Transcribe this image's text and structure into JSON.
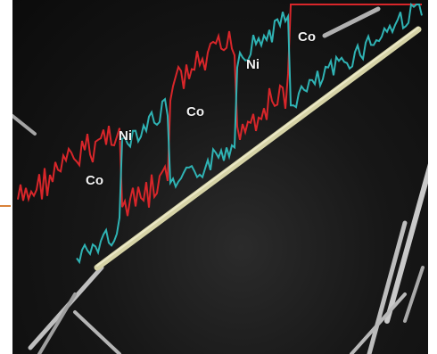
{
  "segments": [
    {
      "label": "Co"
    },
    {
      "label": "Ni"
    },
    {
      "label": "Co"
    },
    {
      "label": "Ni"
    },
    {
      "label": "Co"
    }
  ],
  "colors": {
    "co_trace": "#d8262a",
    "ni_trace": "#2fb3b4",
    "nanowire": "#d6d3a6",
    "background": "#141414"
  }
}
